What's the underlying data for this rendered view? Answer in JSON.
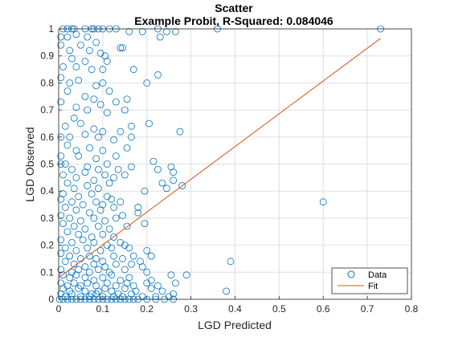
{
  "chart_data": {
    "type": "scatter",
    "title": "Scatter",
    "subtitle": "Example Probit, R-Squared: 0.084046",
    "xlabel": "LGD Predicted",
    "ylabel": "LGD Observed",
    "xlim": [
      0,
      0.8
    ],
    "ylim": [
      0,
      1
    ],
    "xticks": [
      0,
      0.1,
      0.2,
      0.3,
      0.4,
      0.5,
      0.6,
      0.7,
      0.8
    ],
    "yticks": [
      0,
      0.1,
      0.2,
      0.3,
      0.4,
      0.5,
      0.6,
      0.7,
      0.8,
      0.9,
      1
    ],
    "xtick_labels": [
      "0",
      "0.1",
      "0.2",
      "0.3",
      "0.4",
      "0.5",
      "0.6",
      "0.7",
      "0.8"
    ],
    "ytick_labels": [
      "0",
      "0.1",
      "0.2",
      "0.3",
      "0.4",
      "0.5",
      "0.6",
      "0.7",
      "0.8",
      "0.9",
      "1"
    ],
    "grid": true,
    "legend_position": "bottom-right",
    "colors": {
      "data": "#0072bd",
      "fit": "#d95319",
      "grid": "#dfdfdf",
      "axis": "#262626"
    },
    "series": [
      {
        "name": "Data",
        "marker": "open-circle",
        "points": [
          [
            0.01,
            1
          ],
          [
            0.02,
            1
          ],
          [
            0.03,
            1
          ],
          [
            0.035,
            1
          ],
          [
            0.06,
            1
          ],
          [
            0.075,
            1
          ],
          [
            0.08,
            1
          ],
          [
            0.09,
            1
          ],
          [
            0.1,
            1
          ],
          [
            0.115,
            1
          ],
          [
            0.13,
            1
          ],
          [
            0.16,
            0.99
          ],
          [
            0.19,
            0.99
          ],
          [
            0.225,
            1
          ],
          [
            0.245,
            0.99
          ],
          [
            0.265,
            0.99
          ],
          [
            0.36,
            1
          ],
          [
            0.73,
            1
          ],
          [
            0.005,
            0.97
          ],
          [
            0.02,
            0.97
          ],
          [
            0.04,
            0.98
          ],
          [
            0.065,
            0.97
          ],
          [
            0.085,
            0.95
          ],
          [
            0.14,
            0.93
          ],
          [
            0.145,
            0.93
          ],
          [
            0.23,
            0.97
          ],
          [
            0.005,
            0.94
          ],
          [
            0.025,
            0.92
          ],
          [
            0.05,
            0.94
          ],
          [
            0.07,
            0.92
          ],
          [
            0.095,
            0.91
          ],
          [
            0.105,
            0.9
          ],
          [
            0.03,
            0.89
          ],
          [
            0.06,
            0.88
          ],
          [
            0.01,
            0.86
          ],
          [
            0.04,
            0.86
          ],
          [
            0.075,
            0.85
          ],
          [
            0.1,
            0.85
          ],
          [
            0.11,
            0.88
          ],
          [
            0.17,
            0.85
          ],
          [
            0.005,
            0.82
          ],
          [
            0.025,
            0.8
          ],
          [
            0.045,
            0.81
          ],
          [
            0.085,
            0.79
          ],
          [
            0.1,
            0.8
          ],
          [
            0.115,
            0.77
          ],
          [
            0.2,
            0.8
          ],
          [
            0.225,
            0.83
          ],
          [
            0.02,
            0.77
          ],
          [
            0.06,
            0.75
          ],
          [
            0.08,
            0.74
          ],
          [
            0.13,
            0.73
          ],
          [
            0.155,
            0.74
          ],
          [
            0.005,
            0.73
          ],
          [
            0.04,
            0.71
          ],
          [
            0.065,
            0.7
          ],
          [
            0.095,
            0.72
          ],
          [
            0.11,
            0.69
          ],
          [
            0.15,
            0.7
          ],
          [
            0.035,
            0.67
          ],
          [
            0.015,
            0.64
          ],
          [
            0.05,
            0.65
          ],
          [
            0.08,
            0.63
          ],
          [
            0.1,
            0.62
          ],
          [
            0.14,
            0.62
          ],
          [
            0.165,
            0.64
          ],
          [
            0.205,
            0.65
          ],
          [
            0.005,
            0.6
          ],
          [
            0.025,
            0.6
          ],
          [
            0.06,
            0.61
          ],
          [
            0.09,
            0.6
          ],
          [
            0.125,
            0.59
          ],
          [
            0.165,
            0.6
          ],
          [
            0.02,
            0.57
          ],
          [
            0.04,
            0.55
          ],
          [
            0.07,
            0.56
          ],
          [
            0.1,
            0.55
          ],
          [
            0.155,
            0.56
          ],
          [
            0.275,
            0.62
          ],
          [
            0.005,
            0.53
          ],
          [
            0.045,
            0.53
          ],
          [
            0.085,
            0.52
          ],
          [
            0.13,
            0.53
          ],
          [
            0.005,
            0.5
          ],
          [
            0.015,
            0.5
          ],
          [
            0.03,
            0.48
          ],
          [
            0.065,
            0.49
          ],
          [
            0.09,
            0.48
          ],
          [
            0.11,
            0.5
          ],
          [
            0.135,
            0.48
          ],
          [
            0.165,
            0.49
          ],
          [
            0.215,
            0.51
          ],
          [
            0.225,
            0.48
          ],
          [
            0.26,
            0.47
          ],
          [
            0.01,
            0.46
          ],
          [
            0.04,
            0.45
          ],
          [
            0.06,
            0.47
          ],
          [
            0.08,
            0.44
          ],
          [
            0.105,
            0.46
          ],
          [
            0.125,
            0.45
          ],
          [
            0.15,
            0.46
          ],
          [
            0.255,
            0.49
          ],
          [
            0.02,
            0.43
          ],
          [
            0.035,
            0.41
          ],
          [
            0.065,
            0.42
          ],
          [
            0.09,
            0.41
          ],
          [
            0.115,
            0.43
          ],
          [
            0.235,
            0.43
          ],
          [
            0.01,
            0.39
          ],
          [
            0.045,
            0.38
          ],
          [
            0.075,
            0.39
          ],
          [
            0.11,
            0.38
          ],
          [
            0.195,
            0.4
          ],
          [
            0.245,
            0.41
          ],
          [
            0.26,
            0.44
          ],
          [
            0.28,
            0.42
          ],
          [
            0.005,
            0.37
          ],
          [
            0.03,
            0.36
          ],
          [
            0.055,
            0.35
          ],
          [
            0.085,
            0.36
          ],
          [
            0.1,
            0.35
          ],
          [
            0.12,
            0.37
          ],
          [
            0.14,
            0.36
          ],
          [
            0.015,
            0.34
          ],
          [
            0.04,
            0.33
          ],
          [
            0.07,
            0.32
          ],
          [
            0.095,
            0.33
          ],
          [
            0.125,
            0.34
          ],
          [
            0.145,
            0.31
          ],
          [
            0.18,
            0.34
          ],
          [
            0.005,
            0.31
          ],
          [
            0.025,
            0.3
          ],
          [
            0.05,
            0.29
          ],
          [
            0.08,
            0.3
          ],
          [
            0.105,
            0.29
          ],
          [
            0.13,
            0.3
          ],
          [
            0.18,
            0.32
          ],
          [
            0.195,
            0.28
          ],
          [
            0.6,
            0.36
          ],
          [
            0.01,
            0.28
          ],
          [
            0.035,
            0.27
          ],
          [
            0.06,
            0.26
          ],
          [
            0.09,
            0.27
          ],
          [
            0.115,
            0.26
          ],
          [
            0.155,
            0.27
          ],
          [
            0.02,
            0.25
          ],
          [
            0.045,
            0.24
          ],
          [
            0.075,
            0.23
          ],
          [
            0.1,
            0.24
          ],
          [
            0.125,
            0.23
          ],
          [
            0.005,
            0.22
          ],
          [
            0.03,
            0.21
          ],
          [
            0.055,
            0.22
          ],
          [
            0.08,
            0.21
          ],
          [
            0.11,
            0.2
          ],
          [
            0.14,
            0.21
          ],
          [
            0.015,
            0.19
          ],
          [
            0.04,
            0.18
          ],
          [
            0.065,
            0.19
          ],
          [
            0.095,
            0.18
          ],
          [
            0.12,
            0.19
          ],
          [
            0.15,
            0.2
          ],
          [
            0.16,
            0.19
          ],
          [
            0.2,
            0.18
          ],
          [
            0.21,
            0.16
          ],
          [
            0.005,
            0.17
          ],
          [
            0.025,
            0.16
          ],
          [
            0.05,
            0.15
          ],
          [
            0.07,
            0.16
          ],
          [
            0.085,
            0.15
          ],
          [
            0.1,
            0.14
          ],
          [
            0.125,
            0.16
          ],
          [
            0.145,
            0.15
          ],
          [
            0.17,
            0.16
          ],
          [
            0.015,
            0.14
          ],
          [
            0.035,
            0.13
          ],
          [
            0.06,
            0.12
          ],
          [
            0.08,
            0.13
          ],
          [
            0.105,
            0.12
          ],
          [
            0.13,
            0.13
          ],
          [
            0.185,
            0.14
          ],
          [
            0.19,
            0.12
          ],
          [
            0.005,
            0.11
          ],
          [
            0.03,
            0.1
          ],
          [
            0.045,
            0.11
          ],
          [
            0.07,
            0.1
          ],
          [
            0.09,
            0.11
          ],
          [
            0.115,
            0.1
          ],
          [
            0.15,
            0.11
          ],
          [
            0.165,
            0.13
          ],
          [
            0.2,
            0.1
          ],
          [
            0.39,
            0.14
          ],
          [
            0.01,
            0.09
          ],
          [
            0.025,
            0.08
          ],
          [
            0.04,
            0.09
          ],
          [
            0.06,
            0.08
          ],
          [
            0.08,
            0.07
          ],
          [
            0.1,
            0.08
          ],
          [
            0.12,
            0.09
          ],
          [
            0.14,
            0.07
          ],
          [
            0.16,
            0.08
          ],
          [
            0.21,
            0.07
          ],
          [
            0.255,
            0.09
          ],
          [
            0.29,
            0.09
          ],
          [
            0.005,
            0.06
          ],
          [
            0.02,
            0.05
          ],
          [
            0.035,
            0.06
          ],
          [
            0.05,
            0.05
          ],
          [
            0.065,
            0.06
          ],
          [
            0.085,
            0.05
          ],
          [
            0.11,
            0.06
          ],
          [
            0.13,
            0.05
          ],
          [
            0.155,
            0.06
          ],
          [
            0.17,
            0.05
          ],
          [
            0.2,
            0.06
          ],
          [
            0.225,
            0.05
          ],
          [
            0.265,
            0.06
          ],
          [
            0.01,
            0.04
          ],
          [
            0.025,
            0.03
          ],
          [
            0.045,
            0.04
          ],
          [
            0.06,
            0.03
          ],
          [
            0.075,
            0.02
          ],
          [
            0.09,
            0.03
          ],
          [
            0.105,
            0.04
          ],
          [
            0.12,
            0.03
          ],
          [
            0.135,
            0.02
          ],
          [
            0.15,
            0.04
          ],
          [
            0.175,
            0.03
          ],
          [
            0.21,
            0.04
          ],
          [
            0.235,
            0.03
          ],
          [
            0.26,
            0.02
          ],
          [
            0.38,
            0.03
          ],
          [
            0.005,
            0.02
          ],
          [
            0.015,
            0.01
          ],
          [
            0.03,
            0.02
          ],
          [
            0.05,
            0.01
          ],
          [
            0.07,
            0.01
          ],
          [
            0.085,
            0.02
          ],
          [
            0.1,
            0.01
          ],
          [
            0.125,
            0.01
          ],
          [
            0.145,
            0.01
          ],
          [
            0.165,
            0.02
          ],
          [
            0.19,
            0.01
          ],
          [
            0.22,
            0.01
          ],
          [
            0.25,
            0.01
          ],
          [
            0.002,
            0
          ],
          [
            0.01,
            0
          ],
          [
            0.02,
            0
          ],
          [
            0.03,
            0
          ],
          [
            0.04,
            0
          ],
          [
            0.05,
            0
          ],
          [
            0.06,
            0
          ],
          [
            0.07,
            0
          ],
          [
            0.08,
            0
          ],
          [
            0.09,
            0
          ],
          [
            0.1,
            0
          ],
          [
            0.11,
            0
          ],
          [
            0.12,
            0
          ],
          [
            0.13,
            0
          ],
          [
            0.14,
            0
          ],
          [
            0.15,
            0
          ],
          [
            0.16,
            0
          ],
          [
            0.17,
            0
          ],
          [
            0.18,
            0
          ],
          [
            0.2,
            0
          ],
          [
            0.22,
            0
          ],
          [
            0.24,
            0
          ],
          [
            0.26,
            0
          ]
        ]
      },
      {
        "name": "Fit",
        "marker": "line",
        "x": [
          0,
          0.73
        ],
        "y": [
          0.08,
          0.965
        ]
      }
    ]
  }
}
